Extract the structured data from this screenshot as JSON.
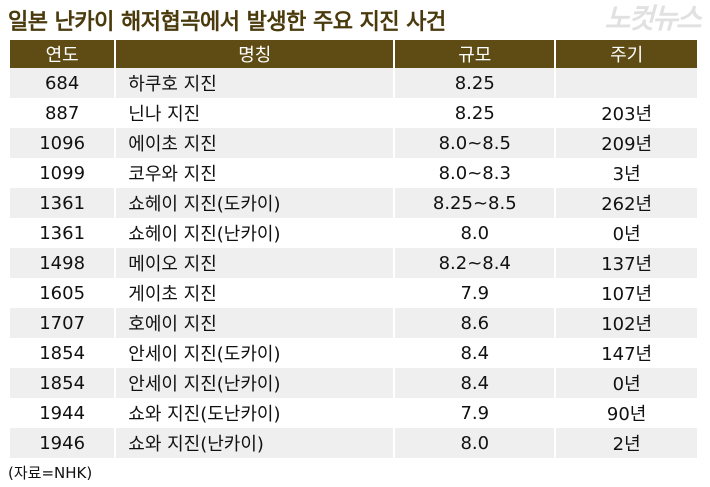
{
  "title": "일본 난카이 해저협곡에서 발생한 주요 지진 사건",
  "columns": [
    "연도",
    "명칭",
    "규모",
    "주기"
  ],
  "rows": [
    [
      "684",
      "하쿠호 지진",
      "8.25",
      ""
    ],
    [
      "887",
      "닌나 지진",
      "8.25",
      "203년"
    ],
    [
      "1096",
      "에이초 지진",
      "8.0~8.5",
      "209년"
    ],
    [
      "1099",
      "코우와 지진",
      "8.0~8.3",
      "3년"
    ],
    [
      "1361",
      "쇼헤이 지진(도카이)",
      "8.25~8.5",
      "262년"
    ],
    [
      "1361",
      "쇼헤이 지진(난카이)",
      "8.0",
      "0년"
    ],
    [
      "1498",
      "메이오 지진",
      "8.2~8.4",
      "137년"
    ],
    [
      "1605",
      "게이초 지진",
      "7.9",
      "107년"
    ],
    [
      "1707",
      "호에이 지진",
      "8.6",
      "102년"
    ],
    [
      "1854",
      "안세이 지진(도카이)",
      "8.4",
      "147년"
    ],
    [
      "1854",
      "안세이 지진(난카이)",
      "8.4",
      "0년"
    ],
    [
      "1944",
      "쇼와 지진(도난카이)",
      "7.9",
      "90년"
    ],
    [
      "1946",
      "쇼와 지진(난카이)",
      "8.0",
      "2년"
    ]
  ],
  "source_note": "(자료=NHK)",
  "watermark": "노컷뉴스",
  "colors": {
    "header_bg": "#5f4b14",
    "title": "#4a3a0c",
    "alt_row": "#efefef"
  }
}
